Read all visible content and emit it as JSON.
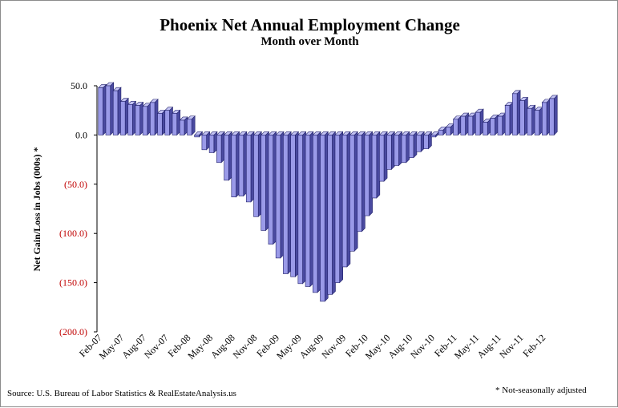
{
  "chart_data": {
    "type": "bar",
    "title": "Phoenix Net Annual Employment Change",
    "subtitle": "Month over Month",
    "ylabel": "Net Gain/Loss in Jobs (000s) *",
    "xlabel": "",
    "ylim": [
      -200,
      50
    ],
    "y_ticks": [
      50,
      0,
      -50,
      -100,
      -150,
      -200
    ],
    "y_tick_labels": [
      "50.0",
      "0.0",
      "(50.0)",
      "(100.0)",
      "(150.0)",
      "(200.0)"
    ],
    "negative_label_color": "#c00000",
    "bar_color": "#9a9ae8",
    "bar_edge_color": "#20206a",
    "grid": false,
    "legend": "none",
    "x_tick_labels": [
      "Feb-07",
      "May-07",
      "Aug-07",
      "Nov-07",
      "Feb-08",
      "May-08",
      "Aug-08",
      "Nov-08",
      "Feb-09",
      "May-09",
      "Aug-09",
      "Nov-09",
      "Feb-10",
      "May-10",
      "Aug-10",
      "Nov-10",
      "Feb-11",
      "May-11",
      "Aug-11",
      "Nov-11",
      "Feb-12"
    ],
    "categories": [
      "Feb-07",
      "Mar-07",
      "Apr-07",
      "May-07",
      "Jun-07",
      "Jul-07",
      "Aug-07",
      "Sep-07",
      "Oct-07",
      "Nov-07",
      "Dec-07",
      "Jan-08",
      "Feb-08",
      "Mar-08",
      "Apr-08",
      "May-08",
      "Jun-08",
      "Jul-08",
      "Aug-08",
      "Sep-08",
      "Oct-08",
      "Nov-08",
      "Dec-08",
      "Jan-09",
      "Feb-09",
      "Mar-09",
      "Apr-09",
      "May-09",
      "Jun-09",
      "Jul-09",
      "Aug-09",
      "Sep-09",
      "Oct-09",
      "Nov-09",
      "Dec-09",
      "Jan-10",
      "Feb-10",
      "Mar-10",
      "Apr-10",
      "May-10",
      "Jun-10",
      "Jul-10",
      "Aug-10",
      "Sep-10",
      "Oct-10",
      "Nov-10",
      "Dec-10",
      "Jan-11",
      "Feb-11",
      "Mar-11",
      "Apr-11",
      "May-11",
      "Jun-11",
      "Jul-11",
      "Aug-11",
      "Sep-11",
      "Oct-11",
      "Nov-11",
      "Dec-11",
      "Jan-12",
      "Feb-12",
      "Mar-12"
    ],
    "values": [
      48,
      50,
      45,
      34,
      31,
      30,
      29,
      33,
      22,
      25,
      22,
      15,
      16,
      -2,
      -15,
      -18,
      -28,
      -46,
      -63,
      -62,
      -68,
      -83,
      -97,
      -111,
      -125,
      -141,
      -144,
      -151,
      -154,
      -160,
      -169,
      -162,
      -150,
      -134,
      -118,
      -98,
      -82,
      -64,
      -47,
      -35,
      -31,
      -28,
      -23,
      -17,
      -14,
      -2,
      5,
      8,
      16,
      19,
      19,
      23,
      13,
      17,
      19,
      30,
      42,
      35,
      27,
      25,
      33,
      37
    ]
  },
  "source": "Source: U.S. Bureau of Labor Statistics & RealEstateAnalysis.us",
  "footnote": "* Not-seasonally adjusted"
}
